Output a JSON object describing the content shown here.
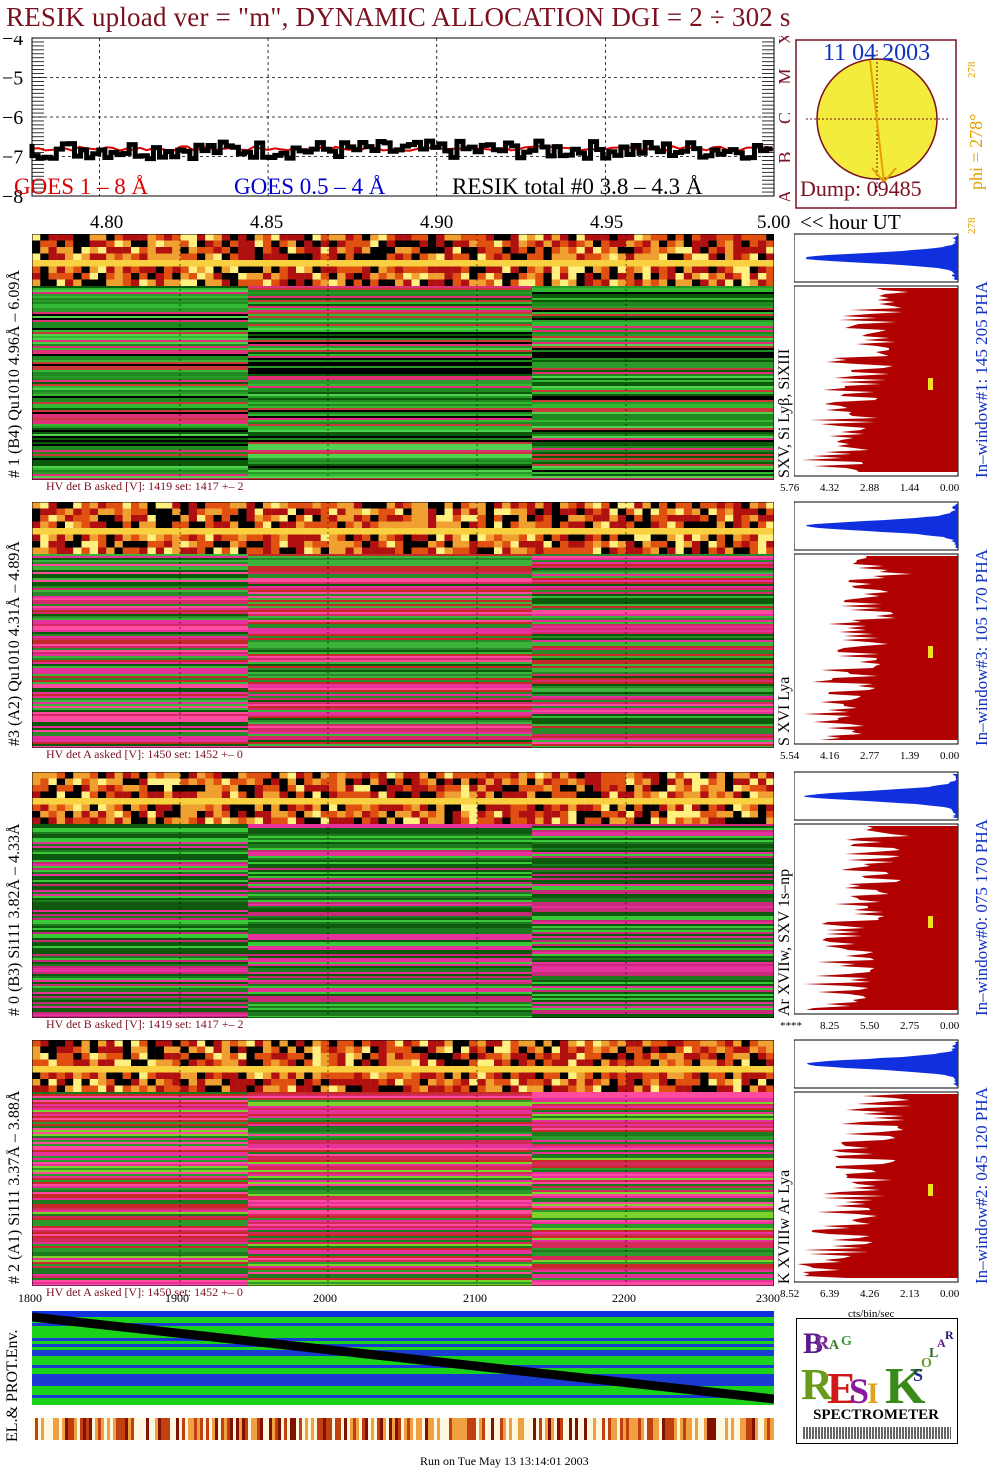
{
  "header": {
    "title": "RESIK upload ver = \"m\", DYNAMIC ALLOCATION  DGI =   2 ÷ 302 s"
  },
  "goes_panel": {
    "legend_goes18": "GOES 1 – 8 Å",
    "legend_goes054": "GOES 0.5 – 4 Å",
    "legend_resik": "RESIK total #0  3.8 – 4.3 Å",
    "y_ticks": [
      "−4",
      "−5",
      "−6",
      "−7",
      "−8"
    ],
    "x_ticks": [
      "4.80",
      "4.85",
      "4.90",
      "4.95",
      "5.00"
    ],
    "x_axis_label": "<< hour UT",
    "class_letters": [
      "X",
      "M",
      "C",
      "B",
      "A"
    ],
    "colors": {
      "goes18": "#e00000",
      "goes054": "#0000d0",
      "resik": "#000000"
    }
  },
  "sun": {
    "date": "11 04 2003",
    "dump": "Dump: 09485",
    "phi": "phi = 278°",
    "phi_small_top": "278",
    "phi_small_bottom": "278"
  },
  "detectors": [
    {
      "label": "# 1 (B4) Qu1010 4.96Å – 6.09Å",
      "lines": "SXV, Si Lyβ, SiXIII",
      "window": "In–window#1:  145 205 PHA",
      "hv": "HV det B asked [V]:  1419 set:  1417 +–    2",
      "x_ticks": [
        "5.76",
        "4.32",
        "2.88",
        "1.44",
        "0.00"
      ]
    },
    {
      "label": "#3 (A2) Qu1010  4.31Å – 4.89Å",
      "lines": "S XVI Lya",
      "window": "In–window#3:  105 170 PHA",
      "hv": "HV det A asked [V]:  1450 set:  1452 +–    0",
      "x_ticks": [
        "5.54",
        "4.16",
        "2.77",
        "1.39",
        "0.00"
      ]
    },
    {
      "label": "# 0 (B3) Si111  3.82Å – 4.33Å",
      "lines": "Ar XVIIw,  SXV 1s–np",
      "window": "In–window#0:  075 170 PHA",
      "hv": "HV det B asked [V]:  1419 set:  1417 +–    2",
      "x_ticks": [
        "****",
        "8.25",
        "5.50",
        "2.75",
        "0.00"
      ]
    },
    {
      "label": "# 2 (A1) Si111  3.37Å – 3.88Å",
      "lines": "K XVIIIw   Ar Lya",
      "window": "In–window#2:  045 120 PHA",
      "hv": "HV det A asked [V]:  1450 set:  1452 +–    0",
      "x_ticks": [
        "8.52",
        "6.39",
        "4.26",
        "2.13",
        "0.00"
      ]
    }
  ],
  "cts_label": "cts/bin/sec",
  "bottom_axis": {
    "ticks": [
      "1800",
      "1900",
      "2000",
      "2100",
      "2200",
      "2300"
    ]
  },
  "env_label": "EL.& PROT.Env.",
  "footer": "Run on Tue May 13 13:14:01 2003",
  "logo": {
    "letters": [
      "B",
      "R",
      "A",
      "G",
      "R",
      "E",
      "S",
      "I",
      "K",
      "S",
      "O",
      "L",
      "A",
      "R"
    ],
    "caption": "SPECTROMETER"
  },
  "chart_data": {
    "type": "line",
    "title": "RESIK upload ver = \"m\", DYNAMIC ALLOCATION  DGI =   2 ÷ 302 s",
    "xlabel": "<< hour UT",
    "ylabel": "",
    "xlim": [
      4.78,
      5.0
    ],
    "ylim": [
      -8,
      -4
    ],
    "series": [
      {
        "name": "GOES 1 – 8 Å",
        "x": [
          4.78,
          4.82,
          4.86,
          4.9,
          4.94,
          4.98,
          5.0
        ],
        "values": [
          -6.85,
          -6.8,
          -6.85,
          -6.8,
          -6.82,
          -6.8,
          -6.82
        ]
      },
      {
        "name": "RESIK total #0  3.8 – 4.3 Å",
        "x": [
          4.78,
          4.82,
          4.86,
          4.9,
          4.94,
          4.98,
          5.0
        ],
        "values": [
          -6.8,
          -6.9,
          -6.75,
          -6.85,
          -6.9,
          -6.8,
          -6.85
        ]
      }
    ]
  }
}
